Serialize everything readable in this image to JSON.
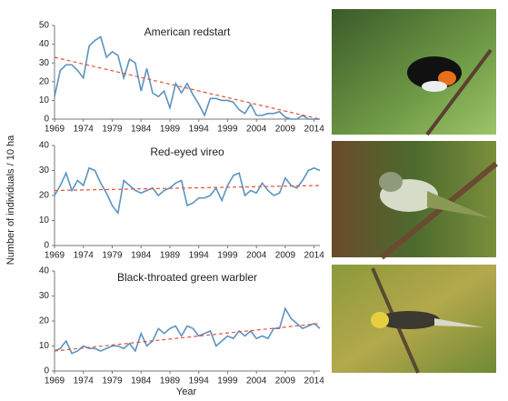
{
  "y_label": "Number of individuals / 10 ha",
  "x_label": "Year",
  "chart_data": [
    {
      "type": "line",
      "title": "American redstart",
      "color": "#5b93c2",
      "trend_color": "#e0533a",
      "x": [
        1969,
        1970,
        1971,
        1972,
        1973,
        1974,
        1975,
        1976,
        1977,
        1978,
        1979,
        1980,
        1981,
        1982,
        1983,
        1984,
        1985,
        1986,
        1987,
        1988,
        1989,
        1990,
        1991,
        1992,
        1993,
        1994,
        1995,
        1996,
        1997,
        1998,
        1999,
        2000,
        2001,
        2002,
        2003,
        2004,
        2005,
        2006,
        2007,
        2008,
        2009,
        2010,
        2011,
        2012,
        2013,
        2014,
        2015
      ],
      "values": [
        12,
        26,
        29,
        29,
        26,
        22,
        39,
        42,
        44,
        33,
        36,
        34,
        22,
        32,
        30,
        15,
        27,
        14,
        12,
        15,
        6,
        19,
        14,
        19,
        13,
        8,
        2,
        11,
        11,
        10,
        10,
        9,
        5,
        3,
        8,
        2,
        2,
        3,
        3,
        4,
        1,
        0,
        0,
        2,
        0,
        0,
        0
      ],
      "trend_x": [
        1969,
        2015
      ],
      "trend_values": [
        33,
        0
      ],
      "xlim": [
        1969,
        2015
      ],
      "xticks": [
        1969,
        1974,
        1979,
        1984,
        1989,
        1994,
        1999,
        2004,
        2009,
        2014
      ],
      "ylim": [
        0,
        50
      ],
      "yticks": [
        0,
        10,
        20,
        30,
        40,
        50
      ]
    },
    {
      "type": "line",
      "title": "Red-eyed vireo",
      "color": "#5b93c2",
      "trend_color": "#e0533a",
      "x": [
        1969,
        1970,
        1971,
        1972,
        1973,
        1974,
        1975,
        1976,
        1977,
        1978,
        1979,
        1980,
        1981,
        1982,
        1983,
        1984,
        1985,
        1986,
        1987,
        1988,
        1989,
        1990,
        1991,
        1992,
        1993,
        1994,
        1995,
        1996,
        1997,
        1998,
        1999,
        2000,
        2001,
        2002,
        2003,
        2004,
        2005,
        2006,
        2007,
        2008,
        2009,
        2010,
        2011,
        2012,
        2013,
        2014,
        2015
      ],
      "values": [
        20,
        24,
        29,
        22,
        26,
        24,
        31,
        30,
        25,
        21,
        16,
        13,
        26,
        24,
        22,
        21,
        22,
        23,
        20,
        22,
        23,
        25,
        26,
        16,
        17,
        19,
        19,
        20,
        23,
        18,
        24,
        28,
        29,
        20,
        22,
        21,
        25,
        22,
        20,
        21,
        27,
        24,
        23,
        26,
        30,
        31,
        30
      ],
      "trend_x": [
        1969,
        2015
      ],
      "trend_values": [
        22,
        24
      ],
      "xlim": [
        1969,
        2015
      ],
      "xticks": [
        1969,
        1974,
        1979,
        1984,
        1989,
        1994,
        1999,
        2004,
        2009,
        2014
      ],
      "ylim": [
        0,
        40
      ],
      "yticks": [
        0,
        10,
        20,
        30,
        40
      ]
    },
    {
      "type": "line",
      "title": "Black-throated green warbler",
      "color": "#5b93c2",
      "trend_color": "#e0533a",
      "x": [
        1969,
        1970,
        1971,
        1972,
        1973,
        1974,
        1975,
        1976,
        1977,
        1978,
        1979,
        1980,
        1981,
        1982,
        1983,
        1984,
        1985,
        1986,
        1987,
        1988,
        1989,
        1990,
        1991,
        1992,
        1993,
        1994,
        1995,
        1996,
        1997,
        1998,
        1999,
        2000,
        2001,
        2002,
        2003,
        2004,
        2005,
        2006,
        2007,
        2008,
        2009,
        2010,
        2011,
        2012,
        2013,
        2014,
        2015
      ],
      "values": [
        8,
        9,
        12,
        7,
        8,
        10,
        9,
        9,
        8,
        9,
        10,
        10,
        9,
        11,
        8,
        15,
        10,
        12,
        17,
        15,
        17,
        18,
        14,
        18,
        17,
        14,
        15,
        16,
        10,
        12,
        14,
        13,
        16,
        14,
        16,
        13,
        14,
        13,
        17,
        17,
        25,
        21,
        19,
        17,
        18,
        19,
        17
      ],
      "trend_x": [
        1969,
        2015
      ],
      "trend_values": [
        8,
        19
      ],
      "xlim": [
        1969,
        2015
      ],
      "xticks": [
        1969,
        1974,
        1979,
        1984,
        1989,
        1994,
        1999,
        2004,
        2009,
        2014
      ],
      "ylim": [
        0,
        40
      ],
      "yticks": [
        0,
        10,
        20,
        30,
        40
      ]
    }
  ]
}
